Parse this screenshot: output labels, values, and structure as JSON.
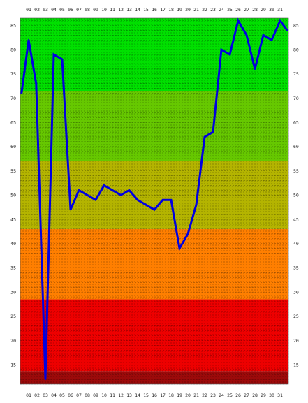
{
  "chart_data": {
    "type": "line",
    "title": "",
    "xlabel": "",
    "ylabel": "",
    "x": [
      "01",
      "02",
      "03",
      "04",
      "05",
      "06",
      "07",
      "08",
      "09",
      "10",
      "11",
      "12",
      "13",
      "14",
      "15",
      "16",
      "17",
      "18",
      "19",
      "20",
      "21",
      "22",
      "23",
      "24",
      "25",
      "26",
      "27",
      "28",
      "29",
      "30",
      "31"
    ],
    "x_positions": [
      1,
      2,
      3,
      4,
      5,
      6,
      7,
      8,
      9,
      10,
      11,
      12,
      13,
      14,
      15,
      16,
      17,
      18,
      19,
      20,
      21,
      22,
      23,
      24,
      25,
      26,
      27,
      28,
      29,
      30,
      31
    ],
    "series": [
      {
        "x": [
          0.15,
          1,
          1.9,
          3,
          4,
          5,
          6,
          7,
          8,
          9,
          10,
          11,
          12,
          13,
          14,
          15,
          16,
          17,
          18,
          19,
          20,
          21,
          22,
          23,
          24,
          25,
          26,
          27,
          28,
          29,
          30,
          31,
          31.85
        ],
        "values": [
          71,
          82,
          73,
          12,
          79,
          78,
          47,
          51,
          50,
          49,
          52,
          51,
          50,
          51,
          49,
          48,
          47,
          49,
          49,
          39,
          42,
          48,
          62,
          63,
          80,
          79,
          86,
          83,
          76,
          83,
          82,
          86,
          84
        ],
        "color": "#0000e0"
      }
    ],
    "xlim": [
      0,
      32
    ],
    "ylim": [
      11,
      86.5
    ],
    "yticks": [
      15,
      20,
      25,
      30,
      35,
      40,
      45,
      50,
      55,
      60,
      65,
      70,
      75,
      80,
      85
    ],
    "grid": true,
    "bands": [
      {
        "from": 11,
        "to": 13.7,
        "color": "#9c0a0a"
      },
      {
        "from": 13.7,
        "to": 28.5,
        "color": "#ee0000"
      },
      {
        "from": 28.5,
        "to": 43,
        "color": "#ff7f00"
      },
      {
        "from": 43,
        "to": 57,
        "color": "#b4b400"
      },
      {
        "from": 57,
        "to": 71.5,
        "color": "#66c800"
      },
      {
        "from": 71.5,
        "to": 86.5,
        "color": "#00e000"
      }
    ]
  }
}
